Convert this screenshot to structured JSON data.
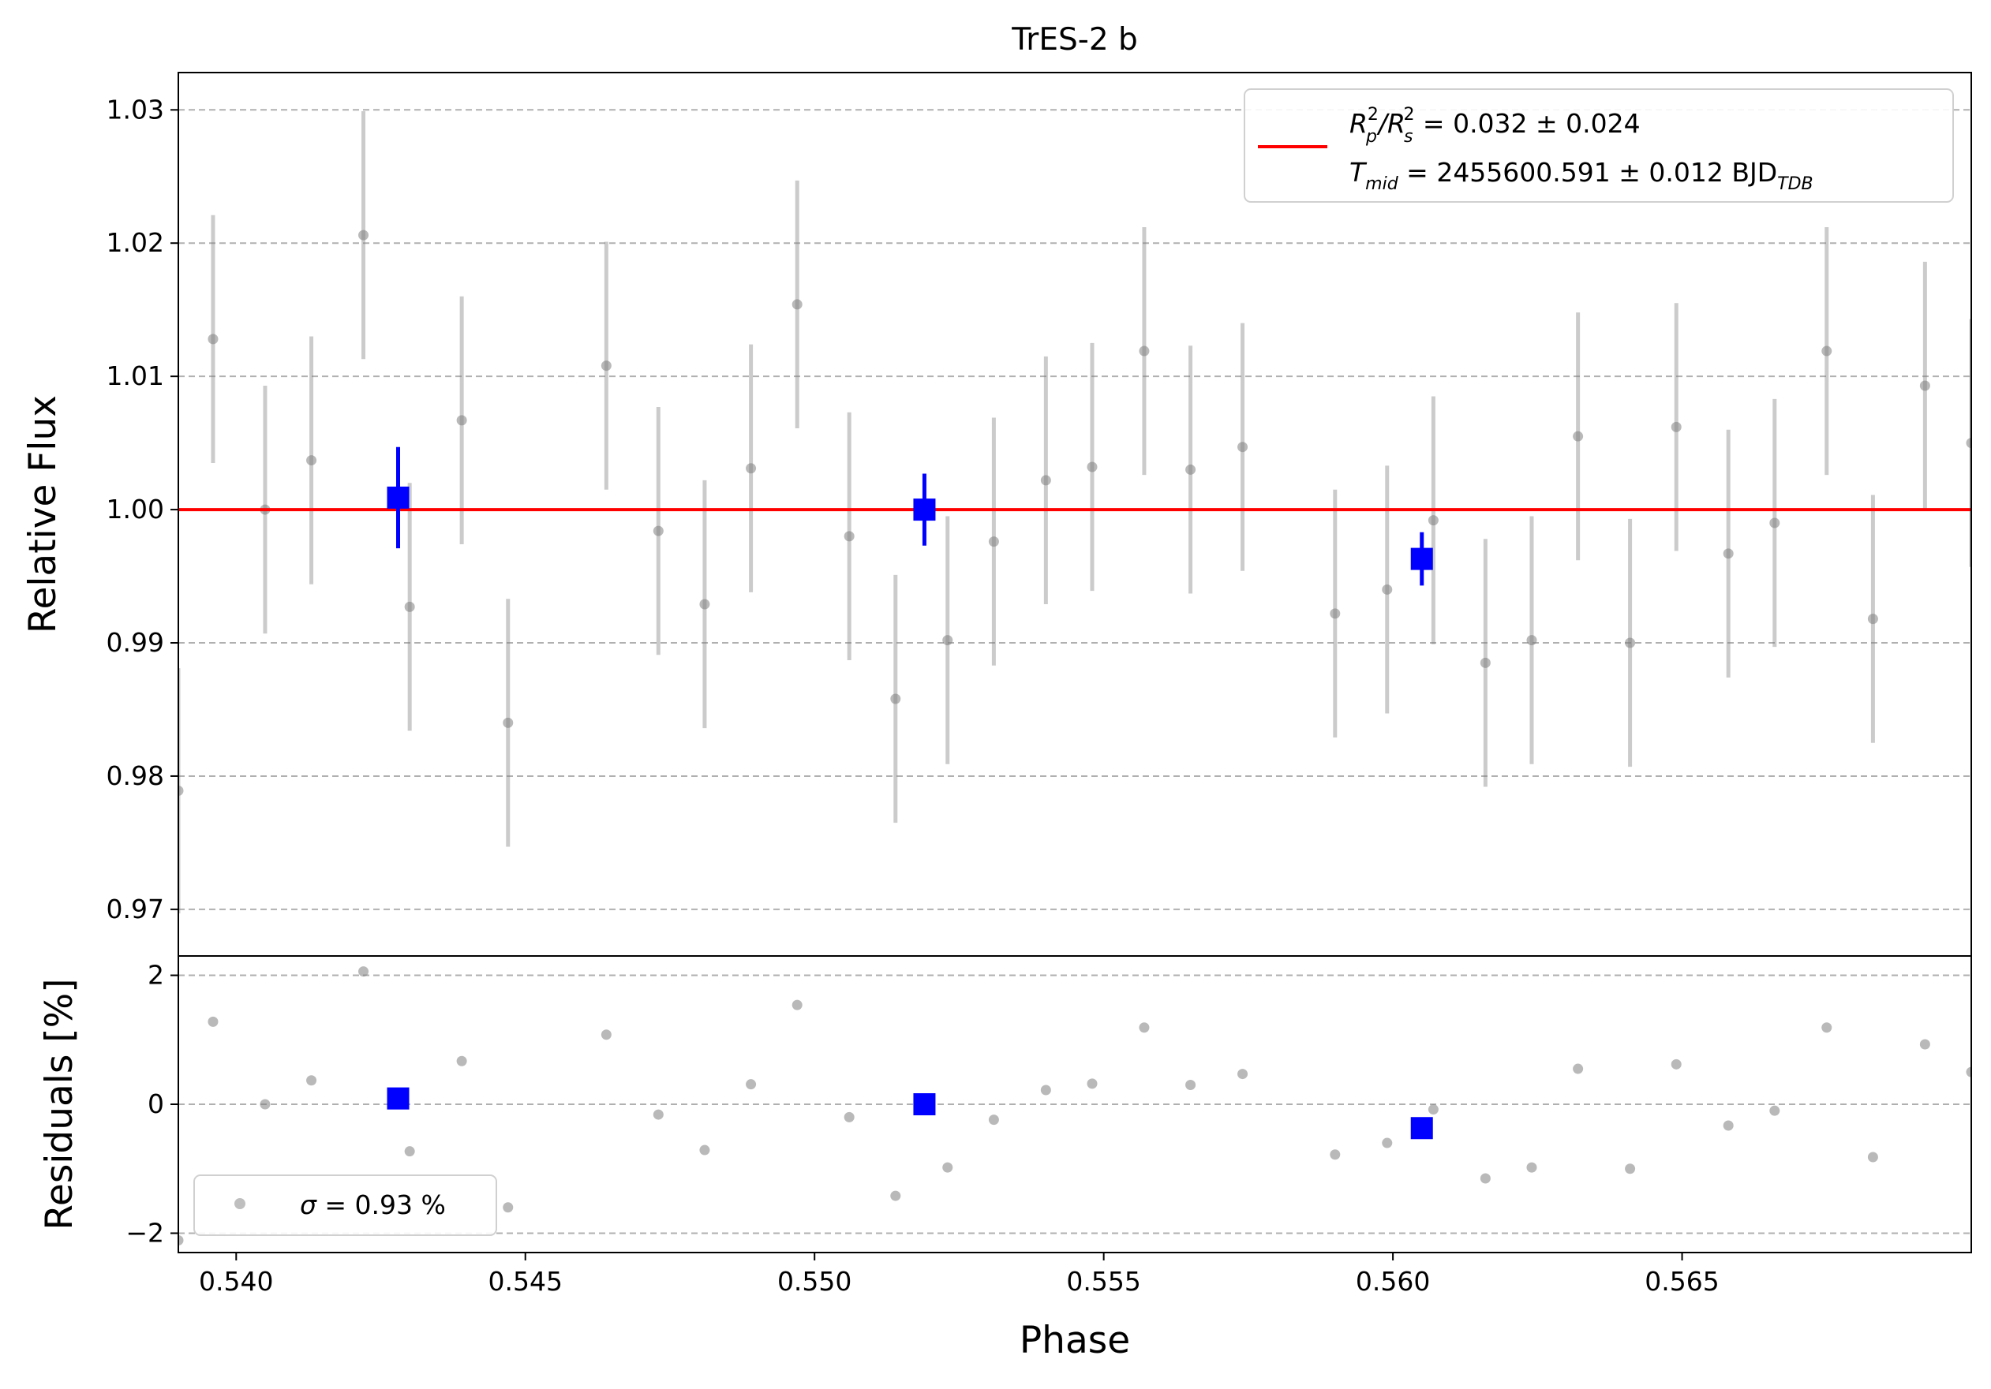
{
  "figure": {
    "title": "TrES-2 b"
  },
  "chart_data": [
    {
      "name": "light_curve",
      "type": "scatter",
      "title": "TrES-2 b",
      "ylabel": "Relative Flux",
      "xlabel": "",
      "xlim": [
        0.539,
        0.57
      ],
      "ylim": [
        0.9665,
        1.0328
      ],
      "grid": "horizontal dashed",
      "ticks": {
        "y": [
          {
            "value": 0.97,
            "label": "0.97"
          },
          {
            "value": 0.98,
            "label": "0.98"
          },
          {
            "value": 0.99,
            "label": "0.99"
          },
          {
            "value": 1.0,
            "label": "1.00"
          },
          {
            "value": 1.01,
            "label": "1.01"
          },
          {
            "value": 1.02,
            "label": "1.02"
          },
          {
            "value": 1.03,
            "label": "1.03"
          }
        ]
      },
      "series": [
        {
          "kind": "data_points",
          "color": "#808080",
          "points": [
            {
              "x": 0.539,
              "y": 0.9789,
              "err": 0.0092
            },
            {
              "x": 0.5396,
              "y": 1.0128,
              "err": 0.0093
            },
            {
              "x": 0.5405,
              "y": 1.0,
              "err": 0.0093
            },
            {
              "x": 0.5413,
              "y": 1.0037,
              "err": 0.0093
            },
            {
              "x": 0.5422,
              "y": 1.0206,
              "err": 0.0093
            },
            {
              "x": 0.543,
              "y": 0.9927,
              "err": 0.0093
            },
            {
              "x": 0.5439,
              "y": 1.0067,
              "err": 0.0093
            },
            {
              "x": 0.5447,
              "y": 0.984,
              "err": 0.0093
            },
            {
              "x": 0.5464,
              "y": 1.0108,
              "err": 0.0093
            },
            {
              "x": 0.5473,
              "y": 0.9984,
              "err": 0.0093
            },
            {
              "x": 0.5481,
              "y": 0.9929,
              "err": 0.0093
            },
            {
              "x": 0.5489,
              "y": 1.0031,
              "err": 0.0093
            },
            {
              "x": 0.5497,
              "y": 1.0154,
              "err": 0.0093
            },
            {
              "x": 0.5506,
              "y": 0.998,
              "err": 0.0093
            },
            {
              "x": 0.5514,
              "y": 0.9858,
              "err": 0.0093
            },
            {
              "x": 0.5523,
              "y": 0.9902,
              "err": 0.0093
            },
            {
              "x": 0.5531,
              "y": 0.9976,
              "err": 0.0093
            },
            {
              "x": 0.554,
              "y": 1.0022,
              "err": 0.0093
            },
            {
              "x": 0.5548,
              "y": 1.0032,
              "err": 0.0093
            },
            {
              "x": 0.5557,
              "y": 1.0119,
              "err": 0.0093
            },
            {
              "x": 0.5565,
              "y": 1.003,
              "err": 0.0093
            },
            {
              "x": 0.5574,
              "y": 1.0047,
              "err": 0.0093
            },
            {
              "x": 0.559,
              "y": 0.9922,
              "err": 0.0093
            },
            {
              "x": 0.5599,
              "y": 0.994,
              "err": 0.0093
            },
            {
              "x": 0.5607,
              "y": 0.9992,
              "err": 0.0093
            },
            {
              "x": 0.5616,
              "y": 0.9885,
              "err": 0.0093
            },
            {
              "x": 0.5624,
              "y": 0.9902,
              "err": 0.0093
            },
            {
              "x": 0.5632,
              "y": 1.0055,
              "err": 0.0093
            },
            {
              "x": 0.5641,
              "y": 0.99,
              "err": 0.0093
            },
            {
              "x": 0.5649,
              "y": 1.0062,
              "err": 0.0093
            },
            {
              "x": 0.5658,
              "y": 0.9967,
              "err": 0.0093
            },
            {
              "x": 0.5666,
              "y": 0.999,
              "err": 0.0093
            },
            {
              "x": 0.5675,
              "y": 1.0119,
              "err": 0.0093
            },
            {
              "x": 0.5683,
              "y": 0.9918,
              "err": 0.0093
            },
            {
              "x": 0.5692,
              "y": 1.0093,
              "err": 0.0093
            },
            {
              "x": 0.57,
              "y": 1.005,
              "err": 0.0093
            }
          ]
        },
        {
          "kind": "binned",
          "color": "#0000ff",
          "points": [
            {
              "x": 0.5428,
              "y": 1.0009,
              "err": 0.0038
            },
            {
              "x": 0.5519,
              "y": 1.0,
              "err": 0.0027
            },
            {
              "x": 0.5605,
              "y": 0.9963,
              "err": 0.002
            }
          ]
        },
        {
          "kind": "model",
          "color": "#ff0000",
          "y": 1.0
        }
      ],
      "legend": {
        "placement": "top-right",
        "line1_prefix": "R",
        "line1_sub1": "p",
        "line1_sup1": "2",
        "line1_slash": "/R",
        "line1_sub2": "s",
        "line1_sup2": "2",
        "line1_value": " = 0.032 ± 0.024",
        "line2_prefix": "T",
        "line2_sub": "mid",
        "line2_value": " = 2455600.591 ± 0.012 BJD",
        "line2_sub2": "TDB"
      }
    },
    {
      "name": "residuals",
      "type": "scatter",
      "xlabel": "Phase",
      "ylabel": "Residuals [%]",
      "xlim": [
        0.539,
        0.57
      ],
      "ylim": [
        -2.3,
        2.3
      ],
      "grid": "horizontal dashed",
      "ticks": {
        "x": [
          {
            "value": 0.54,
            "label": "0.540"
          },
          {
            "value": 0.545,
            "label": "0.545"
          },
          {
            "value": 0.55,
            "label": "0.550"
          },
          {
            "value": 0.555,
            "label": "0.555"
          },
          {
            "value": 0.56,
            "label": "0.560"
          },
          {
            "value": 0.565,
            "label": "0.565"
          }
        ],
        "y": [
          {
            "value": 2,
            "label": "2"
          },
          {
            "value": 0,
            "label": "0"
          },
          {
            "value": -2,
            "label": "−2"
          }
        ]
      },
      "series": [
        {
          "kind": "data_points",
          "color": "#808080",
          "points": [
            {
              "x": 0.539,
              "y": -2.11
            },
            {
              "x": 0.5396,
              "y": 1.28
            },
            {
              "x": 0.5405,
              "y": 0.0
            },
            {
              "x": 0.5413,
              "y": 0.37
            },
            {
              "x": 0.5422,
              "y": 2.06
            },
            {
              "x": 0.543,
              "y": -0.73
            },
            {
              "x": 0.5439,
              "y": 0.67
            },
            {
              "x": 0.5447,
              "y": -1.6
            },
            {
              "x": 0.5464,
              "y": 1.08
            },
            {
              "x": 0.5473,
              "y": -0.16
            },
            {
              "x": 0.5481,
              "y": -0.71
            },
            {
              "x": 0.5489,
              "y": 0.31
            },
            {
              "x": 0.5497,
              "y": 1.54
            },
            {
              "x": 0.5506,
              "y": -0.2
            },
            {
              "x": 0.5514,
              "y": -1.42
            },
            {
              "x": 0.5523,
              "y": -0.98
            },
            {
              "x": 0.5531,
              "y": -0.24
            },
            {
              "x": 0.554,
              "y": 0.22
            },
            {
              "x": 0.5548,
              "y": 0.32
            },
            {
              "x": 0.5557,
              "y": 1.19
            },
            {
              "x": 0.5565,
              "y": 0.3
            },
            {
              "x": 0.5574,
              "y": 0.47
            },
            {
              "x": 0.559,
              "y": -0.78
            },
            {
              "x": 0.5599,
              "y": -0.6
            },
            {
              "x": 0.5607,
              "y": -0.08
            },
            {
              "x": 0.5616,
              "y": -1.15
            },
            {
              "x": 0.5624,
              "y": -0.98
            },
            {
              "x": 0.5632,
              "y": 0.55
            },
            {
              "x": 0.5641,
              "y": -1.0
            },
            {
              "x": 0.5649,
              "y": 0.62
            },
            {
              "x": 0.5658,
              "y": -0.33
            },
            {
              "x": 0.5666,
              "y": -0.1
            },
            {
              "x": 0.5675,
              "y": 1.19
            },
            {
              "x": 0.5683,
              "y": -0.82
            },
            {
              "x": 0.5692,
              "y": 0.93
            },
            {
              "x": 0.57,
              "y": 0.5
            }
          ]
        },
        {
          "kind": "binned",
          "color": "#0000ff",
          "points": [
            {
              "x": 0.5428,
              "y": 0.09
            },
            {
              "x": 0.5519,
              "y": 0.0
            },
            {
              "x": 0.5605,
              "y": -0.37
            }
          ]
        }
      ],
      "legend": {
        "placement": "bottom-left",
        "label_symbol": "σ",
        "label_value": " = 0.93 %"
      }
    }
  ]
}
